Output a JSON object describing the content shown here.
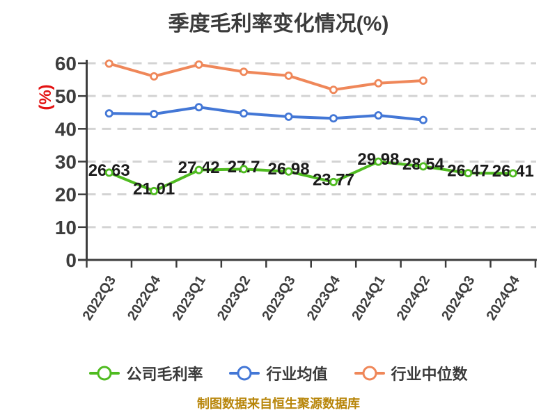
{
  "footer_note": "制图数据来自恒生聚源数据库",
  "colors": {
    "background": "#ffffff",
    "title": "#3b3b3b",
    "axis": "#3d3d3d",
    "grid": "#d3d3d3",
    "data_label": "#1b1b1b",
    "y_axis_label": "#e31212",
    "legend_text": "#3a3a3a",
    "footer": "#b8860b",
    "marker_fill": "#ffffff"
  },
  "chart_data": {
    "type": "line",
    "title": "季度毛利率变化情况(%)",
    "categories": [
      "2022Q3",
      "2022Q4",
      "2023Q1",
      "2023Q2",
      "2023Q3",
      "2023Q4",
      "2024Q1",
      "2024Q2",
      "2024Q3",
      "2024Q4"
    ],
    "series": [
      {
        "id": "company-gross-margin",
        "name": "公司毛利率",
        "color": "#4fbb20",
        "show_labels": true,
        "values": [
          26.63,
          21.01,
          27.42,
          27.7,
          26.98,
          23.77,
          29.98,
          28.54,
          26.47,
          26.41
        ]
      },
      {
        "id": "industry-mean",
        "name": "行业均值",
        "color": "#4377d6",
        "show_labels": false,
        "values": [
          44.7,
          44.5,
          46.6,
          44.7,
          43.7,
          43.2,
          44.1,
          42.7
        ]
      },
      {
        "id": "industry-median",
        "name": "行业中位数",
        "color": "#ef8759",
        "show_labels": false,
        "values": [
          59.9,
          56.0,
          59.6,
          57.4,
          56.2,
          51.9,
          53.9,
          54.7
        ]
      }
    ],
    "ylabel": "(%)",
    "ylim": [
      0,
      60
    ],
    "yticks": [
      0,
      10,
      20,
      30,
      40,
      50,
      60
    ],
    "grid": "horizontal-dashed",
    "legend_position": "bottom",
    "notes": "series industry-mean and industry-median end at 2024Q2"
  }
}
